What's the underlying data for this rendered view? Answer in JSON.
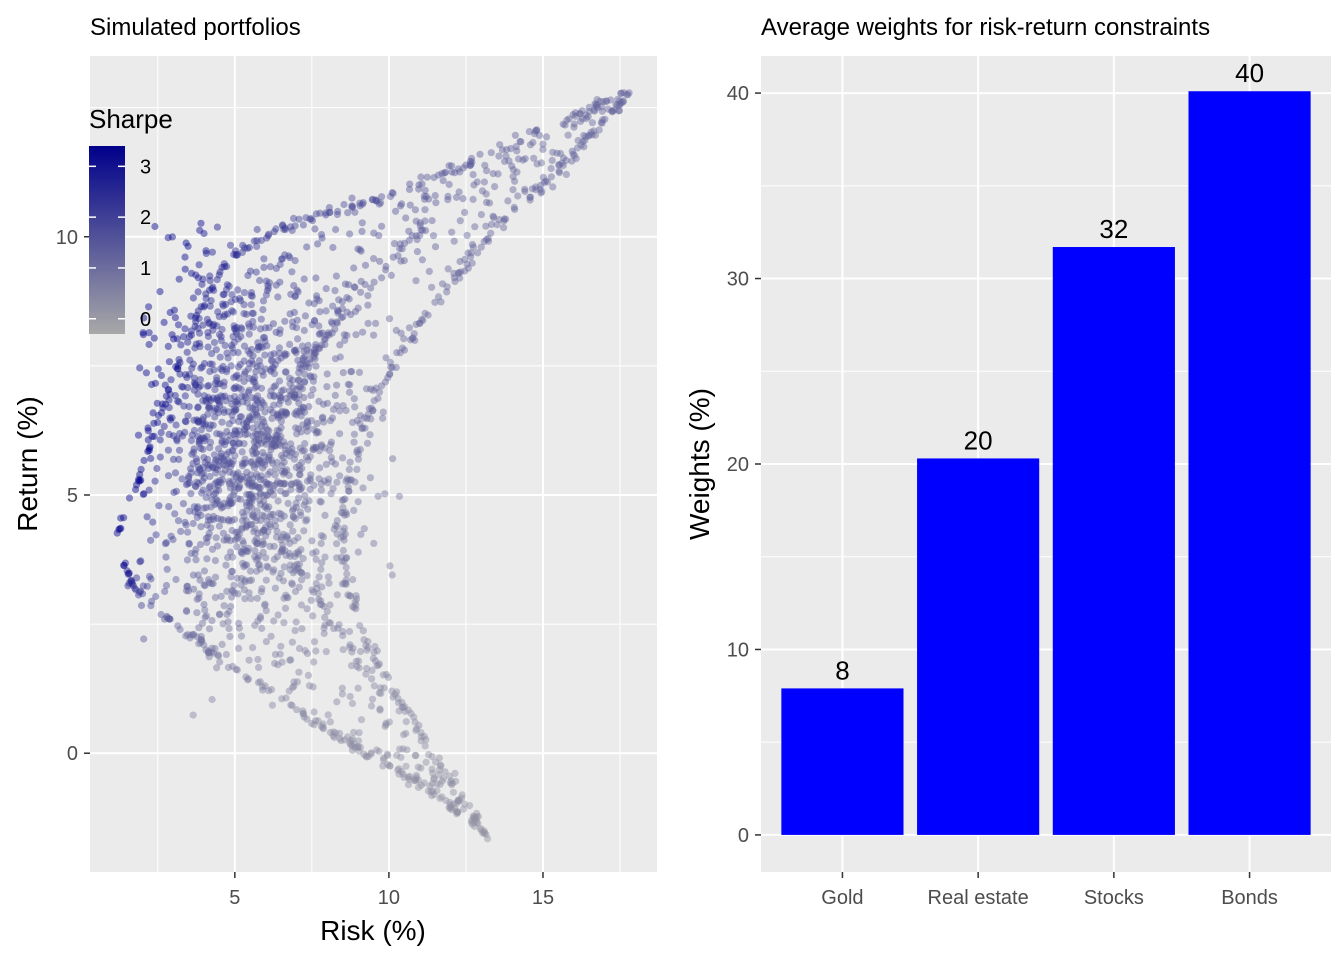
{
  "chart_data": [
    {
      "type": "scatter",
      "title": "Simulated portfolios",
      "xlabel": "Risk (%)",
      "ylabel": "Return (%)",
      "xlim": [
        0.3,
        18.7
      ],
      "ylim": [
        -2.3,
        13.5
      ],
      "xticks": [
        5,
        10,
        15
      ],
      "yticks": [
        0,
        5,
        10
      ],
      "grid": true,
      "point_alpha": 0.45,
      "color_scale": {
        "name": "Sharpe",
        "low": "#a8a8a8",
        "high": "#00008b",
        "min": -0.3,
        "max": 3.4,
        "ticks": [
          0,
          1,
          2,
          3
        ]
      },
      "legend_position": "top-left (inside)",
      "frontier": [
        {
          "x": 17.8,
          "y": 12.8
        },
        {
          "x": 14.0,
          "y": 11.8
        },
        {
          "x": 10.5,
          "y": 10.9
        },
        {
          "x": 7.0,
          "y": 10.3
        },
        {
          "x": 4.8,
          "y": 9.6
        },
        {
          "x": 3.6,
          "y": 8.2
        },
        {
          "x": 2.6,
          "y": 6.6
        },
        {
          "x": 1.7,
          "y": 5.0
        },
        {
          "x": 1.2,
          "y": 4.3
        },
        {
          "x": 1.6,
          "y": 3.3
        },
        {
          "x": 3.0,
          "y": 2.5
        },
        {
          "x": 6.0,
          "y": 1.2
        },
        {
          "x": 9.0,
          "y": 0.1
        },
        {
          "x": 11.5,
          "y": -0.8
        },
        {
          "x": 13.2,
          "y": -1.6
        }
      ],
      "boundary_lower": [
        {
          "x": 17.6,
          "y": 12.6
        },
        {
          "x": 15.0,
          "y": 11.0
        },
        {
          "x": 12.5,
          "y": 9.5
        },
        {
          "x": 10.6,
          "y": 8.0
        },
        {
          "x": 9.3,
          "y": 6.5
        },
        {
          "x": 8.6,
          "y": 5.0
        },
        {
          "x": 8.6,
          "y": 3.5
        },
        {
          "x": 9.2,
          "y": 2.2
        },
        {
          "x": 10.5,
          "y": 0.8
        },
        {
          "x": 12.0,
          "y": -0.5
        },
        {
          "x": 13.2,
          "y": -1.6
        }
      ],
      "inner_arm": [
        {
          "x": 11.5,
          "y": 10.4
        },
        {
          "x": 9.0,
          "y": 9.0
        },
        {
          "x": 7.0,
          "y": 7.2
        },
        {
          "x": 5.8,
          "y": 5.5
        },
        {
          "x": 6.5,
          "y": 4.0
        },
        {
          "x": 8.0,
          "y": 2.6
        },
        {
          "x": 9.6,
          "y": 1.3
        }
      ],
      "cluster": {
        "center_x": 5.5,
        "center_y": 6.0,
        "spread_x": 1.6,
        "spread_y": 1.8
      }
    },
    {
      "type": "bar",
      "title": "Average weights for risk-return constraints",
      "xlabel": "",
      "ylabel": "Weights (%)",
      "categories": [
        "Gold",
        "Real estate",
        "Stocks",
        "Bonds"
      ],
      "values": [
        7.9,
        20.3,
        31.7,
        40.1
      ],
      "labels": [
        "8",
        "20",
        "32",
        "40"
      ],
      "ylim": [
        -2.0,
        42.0
      ],
      "yticks": [
        0,
        10,
        20,
        30,
        40
      ],
      "grid": true,
      "bar_color": "#0000ff"
    }
  ],
  "colors": {
    "panel_bg": "#ebebeb",
    "grid": "#ffffff",
    "tick_text": "#4d4d4d",
    "tick_mark": "#333333"
  }
}
